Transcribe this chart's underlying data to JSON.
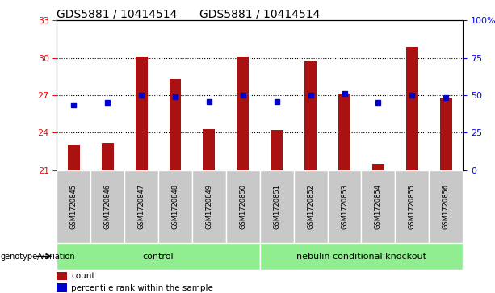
{
  "title": "GDS5881 / 10414514",
  "samples": [
    "GSM1720845",
    "GSM1720846",
    "GSM1720847",
    "GSM1720848",
    "GSM1720849",
    "GSM1720850",
    "GSM1720851",
    "GSM1720852",
    "GSM1720853",
    "GSM1720854",
    "GSM1720855",
    "GSM1720856"
  ],
  "count_values": [
    23.0,
    23.2,
    30.1,
    28.3,
    24.3,
    30.1,
    24.2,
    29.8,
    27.1,
    21.5,
    30.9,
    26.8
  ],
  "percentile_values": [
    26.2,
    26.4,
    27.0,
    26.9,
    26.5,
    27.0,
    26.5,
    27.0,
    27.1,
    26.4,
    27.0,
    26.8
  ],
  "y_min": 21,
  "y_max": 33,
  "y_ticks_left": [
    21,
    24,
    27,
    30,
    33
  ],
  "y_ticks_right": [
    0,
    25,
    50,
    75,
    100
  ],
  "bar_color": "#AA1111",
  "dot_color": "#0000CC",
  "grid_values": [
    24,
    27,
    30
  ],
  "control_label": "control",
  "knockout_label": "nebulin conditional knockout",
  "genotype_label": "genotype/variation",
  "legend_count": "count",
  "legend_percentile": "percentile rank within the sample",
  "group_color": "#90EE90",
  "tick_label_bg": "#C8C8C8",
  "bar_bottom": 21,
  "n_control": 6,
  "n_knockout": 6
}
